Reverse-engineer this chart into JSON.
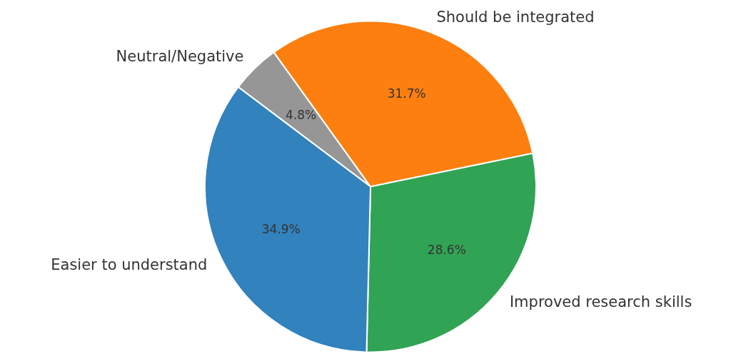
{
  "chart_data": {
    "type": "pie",
    "categories": [
      "Easier to understand",
      "Improved research skills",
      "Should be integrated",
      "Neutral/Negative"
    ],
    "values": [
      34.9,
      28.6,
      31.7,
      4.8
    ],
    "colors": [
      "#3182bd",
      "#31a354",
      "#fd7f0f",
      "#969696"
    ],
    "value_labels": [
      "34.9%",
      "28.6%",
      "31.7%",
      "4.8%"
    ]
  }
}
